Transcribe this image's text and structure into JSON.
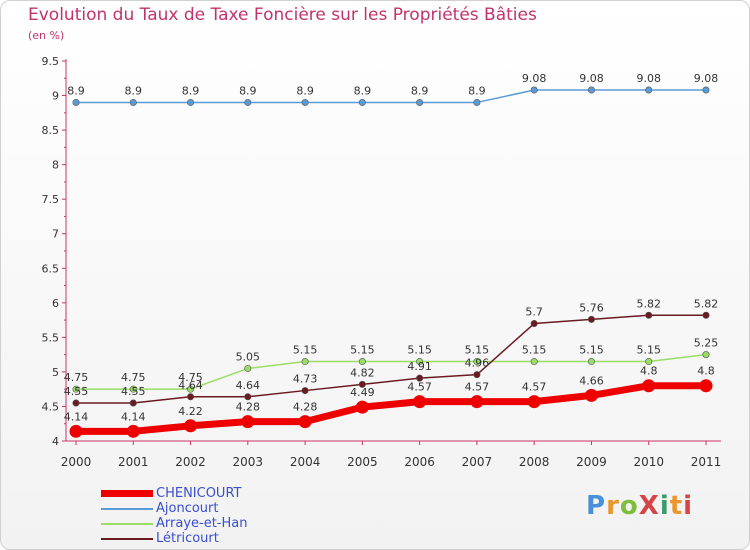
{
  "header": {
    "title": "Evolution du Taux de Taxe Foncière sur les Propriétés Bâties",
    "unit": "(en %)"
  },
  "chart_data": {
    "type": "line",
    "title": "Evolution du Taux de Taxe Foncière sur les Propriétés Bâties",
    "ylabel": "(en %)",
    "xlabel": "",
    "ylim": [
      4,
      9.5
    ],
    "grid": false,
    "legend": "bottom-left",
    "categories": [
      "2000",
      "2001",
      "2002",
      "2003",
      "2004",
      "2005",
      "2006",
      "2007",
      "2008",
      "2009",
      "2010",
      "2011"
    ],
    "yticks": [
      "4",
      "4.5",
      "5",
      "5.5",
      "6",
      "6.5",
      "7",
      "7.5",
      "8",
      "8.5",
      "9",
      "9.5"
    ],
    "series": [
      {
        "name": "Ajoncourt",
        "color": "#5b9bd5",
        "values": [
          8.9,
          8.9,
          8.9,
          8.9,
          8.9,
          8.9,
          8.9,
          8.9,
          9.08,
          9.08,
          9.08,
          9.08
        ],
        "labels": [
          "8.9",
          "8.9",
          "8.9",
          "8.9",
          "8.9",
          "8.9",
          "8.9",
          "8.9",
          "9.08",
          "9.08",
          "9.08",
          "9.08"
        ]
      },
      {
        "name": "Arraye-et-Han",
        "color": "#99dd66",
        "values": [
          4.75,
          4.75,
          4.75,
          5.05,
          5.15,
          5.15,
          5.15,
          5.15,
          5.15,
          5.15,
          5.15,
          5.25
        ],
        "labels": [
          "4.75",
          "4.75",
          "4.75",
          "5.05",
          "5.15",
          "5.15",
          "5.15",
          "5.15",
          "5.15",
          "5.15",
          "5.15",
          "5.25"
        ]
      },
      {
        "name": "Létricourt",
        "color": "#6b1a22",
        "values": [
          4.55,
          4.55,
          4.64,
          4.64,
          4.73,
          4.82,
          4.91,
          4.96,
          5.7,
          5.76,
          5.82,
          5.82
        ],
        "labels": [
          "4.55",
          "4.55",
          "4.64",
          "4.64",
          "4.73",
          "4.82",
          "4.91",
          "4.96",
          "5.7",
          "5.76",
          "5.82",
          "5.82"
        ]
      },
      {
        "name": "CHENICOURT",
        "color": "#ee0000",
        "values": [
          4.14,
          4.14,
          4.22,
          4.28,
          4.28,
          4.49,
          4.57,
          4.57,
          4.57,
          4.66,
          4.8,
          4.8
        ],
        "labels": [
          "4.14",
          "4.14",
          "4.22",
          "4.28",
          "4.28",
          "4.49",
          "4.57",
          "4.57",
          "4.57",
          "4.66",
          "4.8",
          "4.8"
        ]
      }
    ]
  },
  "legend": {
    "items": [
      {
        "label": "CHENICOURT",
        "color": "#ee0000"
      },
      {
        "label": "Ajoncourt",
        "color": "#5b9bd5"
      },
      {
        "label": "Arraye-et-Han",
        "color": "#99dd66"
      },
      {
        "label": "Létricourt",
        "color": "#6b1a22"
      }
    ]
  },
  "logo": {
    "text": "ProXiti"
  }
}
